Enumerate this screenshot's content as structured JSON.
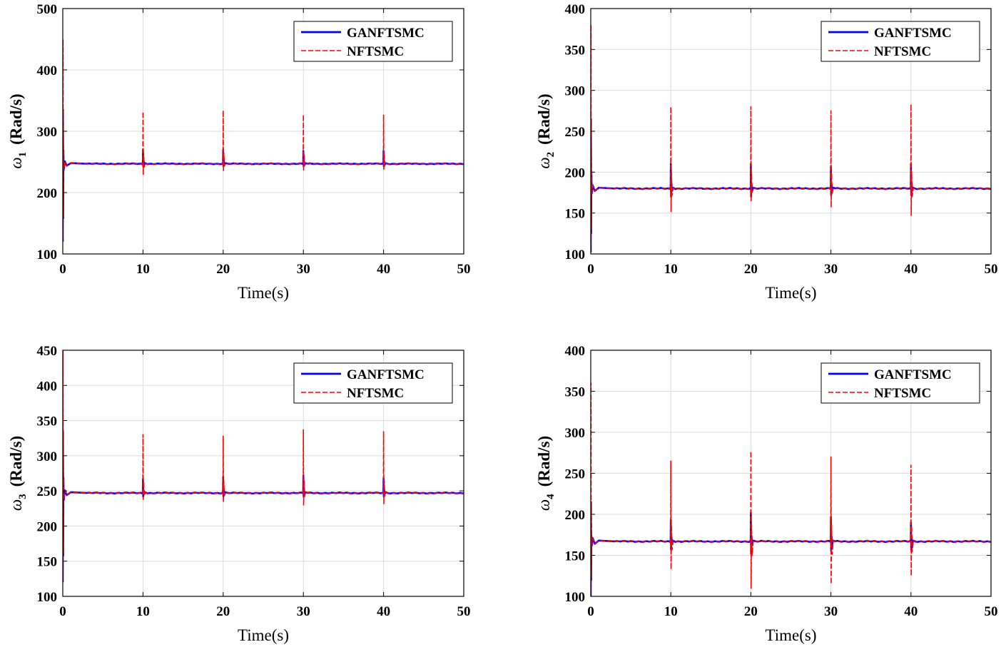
{
  "colors": {
    "ganftsmc": "#0000ff",
    "nftsmc": "#ff0000",
    "grid": "#dcdcdc",
    "axis": "#000000"
  },
  "chart_data": [
    {
      "type": "line",
      "panel": "top-left",
      "ylabel_symbol": "ω",
      "ylabel_sub": "1",
      "ylabel_unit": "(Rad/s)",
      "xlabel": "Time(s)",
      "xlim": [
        0,
        50
      ],
      "ylim": [
        100,
        500
      ],
      "xticks": [
        0,
        10,
        20,
        30,
        40,
        50
      ],
      "yticks": [
        100,
        200,
        300,
        400,
        500
      ],
      "grid": true,
      "legend": [
        "GANFTSMC",
        "NFTSMC"
      ],
      "legend_position": "top-right",
      "steady": 247,
      "spike_times": [
        10,
        20,
        30,
        40
      ],
      "series": [
        {
          "name": "GANFTSMC",
          "style": "solid",
          "initial_peak": 335,
          "initial_low": 120,
          "spike_peaks": [
            270,
            270,
            268,
            268
          ],
          "spike_lows": [
            243,
            243,
            243,
            243
          ]
        },
        {
          "name": "NFTSMC",
          "style": "dashed",
          "initial_peak": 450,
          "initial_low": 125,
          "spike_peaks": [
            332,
            334,
            327,
            327
          ],
          "spike_lows": [
            230,
            236,
            237,
            237
          ]
        }
      ]
    },
    {
      "type": "line",
      "panel": "top-right",
      "ylabel_symbol": "ω",
      "ylabel_sub": "2",
      "ylabel_unit": "(Rad/s)",
      "xlabel": "Time(s)",
      "xlim": [
        0,
        50
      ],
      "ylim": [
        100,
        400
      ],
      "xticks": [
        0,
        10,
        20,
        30,
        40,
        50
      ],
      "yticks": [
        100,
        150,
        200,
        250,
        300,
        350,
        400
      ],
      "grid": true,
      "legend": [
        "GANFTSMC",
        "NFTSMC"
      ],
      "legend_position": "top-right",
      "steady": 180,
      "spike_times": [
        10,
        20,
        30,
        40
      ],
      "series": [
        {
          "name": "GANFTSMC",
          "style": "solid",
          "initial_peak": 265,
          "initial_low": 102,
          "spike_peaks": [
            210,
            210,
            207,
            210
          ],
          "spike_lows": [
            170,
            170,
            172,
            172
          ]
        },
        {
          "name": "NFTSMC",
          "style": "dashed",
          "initial_peak": 380,
          "initial_low": 110,
          "spike_peaks": [
            280,
            280,
            275,
            283
          ],
          "spike_lows": [
            152,
            165,
            157,
            147
          ]
        }
      ]
    },
    {
      "type": "line",
      "panel": "bottom-left",
      "ylabel_symbol": "ω",
      "ylabel_sub": "3",
      "ylabel_unit": "(Rad/s)",
      "xlabel": "Time(s)",
      "xlim": [
        0,
        50
      ],
      "ylim": [
        100,
        450
      ],
      "xticks": [
        0,
        10,
        20,
        30,
        40,
        50
      ],
      "yticks": [
        100,
        150,
        200,
        250,
        300,
        350,
        400,
        450
      ],
      "grid": true,
      "legend": [
        "GANFTSMC",
        "NFTSMC"
      ],
      "legend_position": "top-right",
      "steady": 247,
      "spike_times": [
        10,
        20,
        30,
        40
      ],
      "series": [
        {
          "name": "GANFTSMC",
          "style": "solid",
          "initial_peak": 335,
          "initial_low": 120,
          "spike_peaks": [
            267,
            270,
            272,
            268
          ],
          "spike_lows": [
            242,
            242,
            242,
            242
          ]
        },
        {
          "name": "NFTSMC",
          "style": "dashed",
          "initial_peak": 450,
          "initial_low": 125,
          "spike_peaks": [
            330,
            328,
            337,
            335
          ],
          "spike_lows": [
            238,
            235,
            230,
            232
          ]
        }
      ]
    },
    {
      "type": "line",
      "panel": "bottom-right",
      "ylabel_symbol": "ω",
      "ylabel_sub": "4",
      "ylabel_unit": "(Rad/s)",
      "xlabel": "Time(s)",
      "xlim": [
        0,
        50
      ],
      "ylim": [
        100,
        400
      ],
      "xticks": [
        0,
        10,
        20,
        30,
        40,
        50
      ],
      "yticks": [
        100,
        150,
        200,
        250,
        300,
        350,
        400
      ],
      "grid": true,
      "legend": [
        "GANFTSMC",
        "NFTSMC"
      ],
      "legend_position": "top-right",
      "steady": 167,
      "spike_times": [
        10,
        20,
        30,
        40
      ],
      "series": [
        {
          "name": "GANFTSMC",
          "style": "solid",
          "initial_peak": 195,
          "initial_low": 100,
          "spike_peaks": [
            193,
            202,
            197,
            190
          ],
          "spike_lows": [
            157,
            152,
            155,
            157
          ]
        },
        {
          "name": "NFTSMC",
          "style": "dashed",
          "initial_peak": 360,
          "initial_low": 105,
          "spike_peaks": [
            265,
            277,
            270,
            260
          ],
          "spike_lows": [
            133,
            110,
            115,
            125
          ]
        }
      ]
    }
  ]
}
